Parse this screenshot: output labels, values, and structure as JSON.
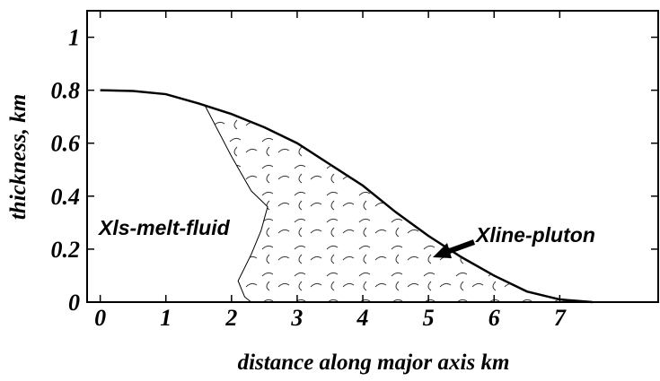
{
  "chart_data": {
    "type": "line",
    "x_label": "distance along major axis km",
    "y_label": "thickness, km",
    "annotations": [
      "Xline-pluton",
      "Xls-melt-fluid"
    ],
    "xlim": [
      -0.2,
      8.5
    ],
    "ylim": [
      0,
      1.1
    ],
    "xticks": [
      0,
      1,
      2,
      3,
      4,
      5,
      6,
      7
    ],
    "yticks": [
      0,
      0.2,
      0.4,
      0.6,
      0.8,
      1
    ],
    "series": [
      {
        "color": "#000000",
        "x": [
          0,
          0.5,
          1,
          1.5,
          2,
          2.5,
          3,
          3.5,
          4,
          4.5,
          5,
          5.5,
          6,
          6.5,
          7,
          7.5
        ],
        "values": [
          0.8,
          0.797,
          0.785,
          0.75,
          0.71,
          0.66,
          0.6,
          0.52,
          0.44,
          0.34,
          0.25,
          0.17,
          0.1,
          0.04,
          0.01,
          0
        ]
      },
      {
        "color": "#000000",
        "fill": "hatch",
        "x": [
          1.6,
          2.0,
          2.3,
          2.55,
          2.45,
          2.3,
          2.1,
          2.2,
          2.3,
          7.2,
          7,
          6.5,
          6,
          5.5,
          5,
          4.5,
          4,
          3.5,
          3,
          2.5,
          2,
          1.6
        ],
        "values": [
          0.74,
          0.55,
          0.42,
          0.36,
          0.27,
          0.18,
          0.08,
          0.02,
          0,
          0,
          0.01,
          0.04,
          0.1,
          0.17,
          0.25,
          0.34,
          0.44,
          0.52,
          0.6,
          0.66,
          0.71,
          0.74
        ]
      }
    ]
  }
}
